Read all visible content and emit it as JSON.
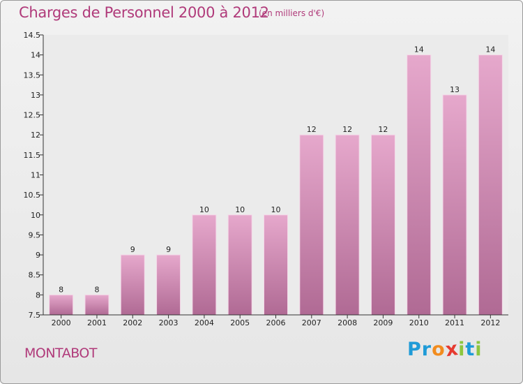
{
  "header": {
    "title": "Charges de Personnel 2000 à 2012",
    "subtitle": "(en milliers d'€)"
  },
  "footer": {
    "commune": "MONTABOT",
    "logo_letters": [
      {
        "char": "P",
        "color": "#1f9bd7"
      },
      {
        "char": "r",
        "color": "#1f9bd7"
      },
      {
        "char": "o",
        "color": "#f28c1e"
      },
      {
        "char": "x",
        "color": "#e63a30"
      },
      {
        "char": "i",
        "color": "#8cc63f"
      },
      {
        "char": "t",
        "color": "#1f9bd7"
      },
      {
        "char": "i",
        "color": "#8cc63f"
      }
    ]
  },
  "colors": {
    "bar_light": "#e6a8cc",
    "bar_dark": "#b06a94",
    "accent": "#b03a7a"
  },
  "chart_data": {
    "type": "bar",
    "title": "Charges de Personnel 2000 à 2012",
    "subtitle": "(en milliers d'€)",
    "categories": [
      "2000",
      "2001",
      "2002",
      "2003",
      "2004",
      "2005",
      "2006",
      "2007",
      "2008",
      "2009",
      "2010",
      "2011",
      "2012"
    ],
    "values": [
      8,
      8,
      9,
      9,
      10,
      10,
      10,
      12,
      12,
      12,
      14,
      13,
      14
    ],
    "ylim": [
      7.5,
      14.5
    ],
    "yticks": [
      "7.5",
      "8",
      "8.5",
      "9",
      "9.5",
      "10",
      "10.5",
      "11",
      "11.5",
      "12",
      "12.5",
      "13",
      "13.5",
      "14",
      "14.5"
    ],
    "grid": false
  }
}
